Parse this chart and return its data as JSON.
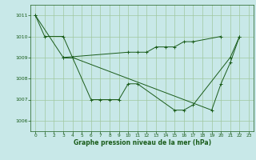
{
  "title": "Graphe pression niveau de la mer (hPa)",
  "bg_color": "#c8e8e8",
  "grid_color": "#a0c8a0",
  "line_color": "#1a5c1a",
  "xlim": [
    -0.5,
    23.5
  ],
  "ylim": [
    1005.5,
    1011.5
  ],
  "yticks": [
    1006,
    1007,
    1008,
    1009,
    1010,
    1011
  ],
  "xticks": [
    0,
    1,
    2,
    3,
    4,
    5,
    6,
    7,
    8,
    9,
    10,
    11,
    12,
    13,
    14,
    15,
    16,
    17,
    18,
    19,
    20,
    21,
    22,
    23
  ],
  "series2": {
    "line1_x": [
      0,
      1,
      3,
      4,
      6,
      7,
      8,
      9,
      10,
      11,
      15,
      16,
      17,
      21,
      22
    ],
    "line1_y": [
      1011.0,
      1010.0,
      1010.0,
      1009.0,
      1007.0,
      1007.0,
      1007.0,
      1007.0,
      1007.75,
      1007.75,
      1006.5,
      1006.5,
      1006.75,
      1009.0,
      1010.0
    ],
    "line2_x": [
      3,
      4
    ],
    "line2_y": [
      1009.0,
      1009.0
    ],
    "line3_x": [
      0,
      3,
      10,
      11,
      12,
      13,
      14,
      15,
      16,
      17,
      20
    ],
    "line3_y": [
      1011.0,
      1009.0,
      1009.25,
      1009.25,
      1009.25,
      1009.5,
      1009.5,
      1009.5,
      1009.75,
      1009.75,
      1010.0
    ],
    "line4_x": [
      4,
      19,
      20,
      21,
      22
    ],
    "line4_y": [
      1009.0,
      1006.5,
      1007.75,
      1008.75,
      1010.0
    ]
  }
}
